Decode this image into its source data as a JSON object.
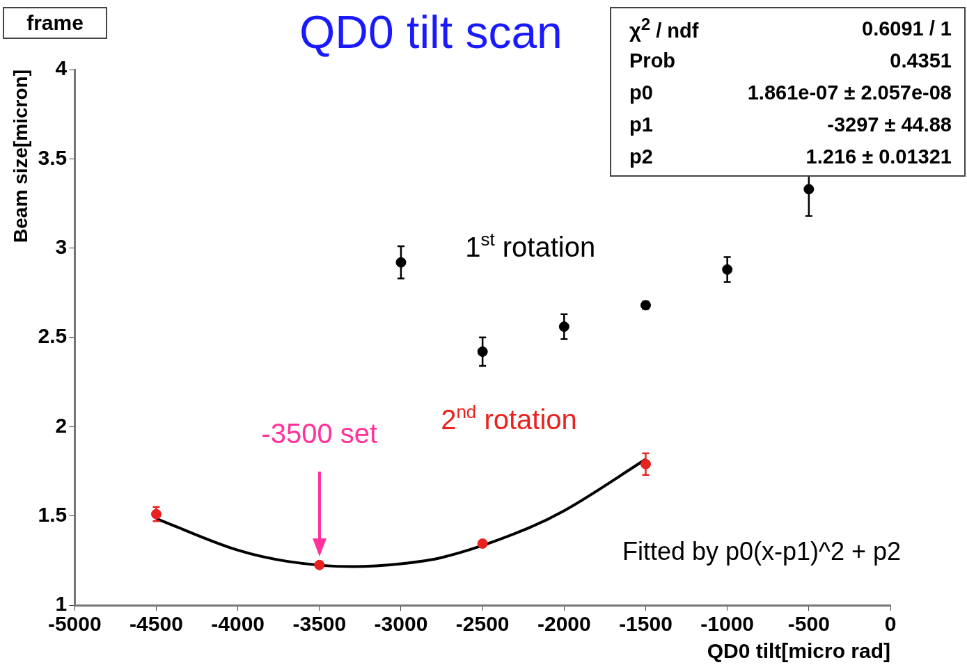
{
  "chart_data": {
    "type": "scatter",
    "title": "QD0 tilt scan",
    "xlabel": "QD0 tilt[micro rad]",
    "ylabel": "Beam size[micron]",
    "xlim": [
      -5000,
      0
    ],
    "xticks": [
      -5000,
      -4500,
      -4000,
      -3500,
      -3000,
      -2500,
      -2000,
      -1500,
      -1000,
      -500,
      0
    ],
    "ylim": [
      1,
      4
    ],
    "yticks": [
      1,
      1.5,
      2,
      2.5,
      3,
      3.5,
      4
    ],
    "grid": false,
    "legend": false,
    "marker": "circle",
    "series": [
      {
        "name": "1$^{st}$ rotation",
        "color": "#000000",
        "x": [
          -3000,
          -2500,
          -2000,
          -1500,
          -1000,
          -500
        ],
        "values": [
          2.92,
          2.42,
          2.56,
          2.68,
          2.88,
          3.33
        ],
        "errors": [
          0.09,
          0.08,
          0.07,
          0.02,
          0.07,
          0.15
        ]
      },
      {
        "name": "2$^{nd}$ rotation",
        "color": "#e8231f",
        "x": [
          -4500,
          -3500,
          -2500,
          -1500
        ],
        "values": [
          1.51,
          1.225,
          1.345,
          1.79
        ],
        "errors": [
          0.04,
          0.01,
          0.01,
          0.06
        ]
      },
      {
        "type": "line",
        "marker": "none",
        "color": "#000000",
        "x": [
          -4500,
          -4000,
          -3700,
          -3297,
          -3000,
          -2750,
          -2250,
          -2000,
          -1500
        ],
        "values": [
          1.485,
          1.308,
          1.246,
          1.216,
          1.232,
          1.267,
          1.42,
          1.529,
          1.817
        ]
      }
    ],
    "annotations": [
      "frame",
      "χ$^{2}$ / ndf",
      "0.6091 / 1",
      "Prob",
      "0.4351",
      "p0",
      "1.861e-07 ± 2.057e-08",
      "p1",
      "-3297 ± 44.88",
      "p2",
      "1.216 ± 0.01321",
      "-3500 set",
      "Fitted by p0(x-p1)^2 + p2"
    ]
  }
}
